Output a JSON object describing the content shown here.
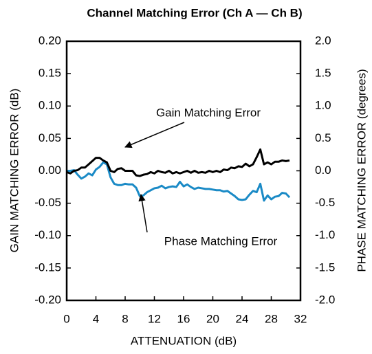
{
  "chart_data": {
    "type": "line",
    "title": "Channel Matching Error (Ch A — Ch B)",
    "xlabel": "ATTENUATION (dB)",
    "ylabel": "GAIN MATCHING ERROR (dB)",
    "y2label": "PHASE MATCHING ERROR (degrees)",
    "annotations": [
      "Gain Matching Error",
      "Phase Matching Error"
    ],
    "xlim": [
      0,
      32
    ],
    "xticks": [
      0,
      4,
      8,
      12,
      16,
      20,
      24,
      28,
      32
    ],
    "ylim": [
      -0.2,
      0.2
    ],
    "yticks": [
      {
        "value": 0.2,
        "label": "0.20"
      },
      {
        "value": 0.15,
        "label": "0.15"
      },
      {
        "value": 0.1,
        "label": "0.10"
      },
      {
        "value": 0.05,
        "label": "0.05"
      },
      {
        "value": 0,
        "label": "0.00"
      },
      {
        "value": -0.05,
        "label": "-0.05"
      },
      {
        "value": -0.1,
        "label": "-0.10"
      },
      {
        "value": -0.15,
        "label": "-0.15"
      },
      {
        "value": -0.2,
        "label": "-0.20"
      }
    ],
    "y2lim": [
      -2,
      2
    ],
    "y2ticks": [
      {
        "value": 2,
        "label": "2.0"
      },
      {
        "value": 1.5,
        "label": "1.5"
      },
      {
        "value": 1,
        "label": "1.0"
      },
      {
        "value": 0.5,
        "label": "0.5"
      },
      {
        "value": 0,
        "label": "0.0"
      },
      {
        "value": -0.5,
        "label": "-0.5"
      },
      {
        "value": -1,
        "label": "-1.0"
      },
      {
        "value": -1.5,
        "label": "-1.5"
      },
      {
        "value": -2,
        "label": "-2.0"
      }
    ],
    "grid": false,
    "x": [
      0,
      0.5,
      1,
      1.5,
      2,
      2.5,
      3,
      3.5,
      4,
      4.5,
      5,
      5.5,
      6,
      6.5,
      7,
      7.5,
      8,
      8.5,
      9,
      9.5,
      10,
      10.5,
      11,
      11.5,
      12,
      12.5,
      13,
      13.5,
      14,
      14.5,
      15,
      15.5,
      16,
      16.5,
      17,
      17.5,
      18,
      18.5,
      19,
      19.5,
      20,
      20.5,
      21,
      21.5,
      22,
      22.5,
      23,
      23.5,
      24,
      24.5,
      25,
      25.5,
      26,
      26.5,
      27,
      27.5,
      28,
      28.5,
      29,
      29.5,
      30,
      30.5
    ],
    "series": [
      {
        "name": "Gain Matching Error",
        "color": "#000000",
        "axis": "y",
        "values": [
          -0.002,
          -0.004,
          0,
          0.001,
          0.005,
          0.005,
          0.01,
          0.015,
          0.02,
          0.02,
          0.016,
          0.013,
          0,
          -0.002,
          0.003,
          0.004,
          0,
          0,
          0,
          -0.007,
          -0.008,
          -0.006,
          -0.005,
          -0.002,
          -0.004,
          0,
          -0.002,
          -0.003,
          0,
          -0.004,
          -0.002,
          -0.004,
          -0.002,
          0,
          -0.003,
          0,
          -0.003,
          -0.002,
          -0.003,
          0,
          -0.002,
          0,
          -0.002,
          0.002,
          0.001,
          0.005,
          0.004,
          0.007,
          0.006,
          0.011,
          0.007,
          0.01,
          0.021,
          0.033,
          0.01,
          0.013,
          0.01,
          0.014,
          0.014,
          0.016,
          0.015,
          0.016
        ]
      },
      {
        "name": "Phase Matching Error",
        "color": "#1a8ac6",
        "axis": "y2",
        "values": [
          0,
          0,
          0.01,
          -0.06,
          -0.12,
          -0.09,
          -0.04,
          -0.07,
          0.02,
          0.06,
          0.13,
          0.1,
          -0.1,
          -0.2,
          -0.22,
          -0.22,
          -0.2,
          -0.21,
          -0.21,
          -0.26,
          -0.39,
          -0.38,
          -0.33,
          -0.3,
          -0.27,
          -0.26,
          -0.23,
          -0.27,
          -0.25,
          -0.24,
          -0.25,
          -0.17,
          -0.24,
          -0.21,
          -0.25,
          -0.28,
          -0.26,
          -0.27,
          -0.28,
          -0.28,
          -0.29,
          -0.3,
          -0.3,
          -0.32,
          -0.31,
          -0.35,
          -0.39,
          -0.44,
          -0.45,
          -0.44,
          -0.37,
          -0.31,
          -0.33,
          -0.2,
          -0.46,
          -0.38,
          -0.44,
          -0.4,
          -0.39,
          -0.34,
          -0.35,
          -0.41
        ]
      }
    ]
  }
}
